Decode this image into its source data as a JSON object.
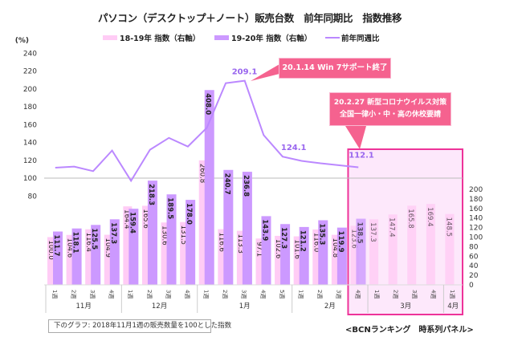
{
  "title": "パソコン（デスクトップ＋ノート）販売台数　前年同期比　指数推移",
  "legend": [
    {
      "label": "18-19年 指数（右軸）",
      "color": "#ffccf5"
    },
    {
      "label": "19-20年 指数（右軸）",
      "color": "#cc99ff"
    },
    {
      "label": "前年同週比",
      "color": "#bb88ff"
    }
  ],
  "note": "下のグラフ: 2018年11月1週の販売数量を100とした指数",
  "source": "<BCNランキング　時系列パネル>",
  "callouts": [
    {
      "text": "20.1.14  Win 7サポート終了"
    },
    {
      "line1": "20.2.27  新型コロナウイルス対策",
      "line2": "全国一律小・中・高の休校要請"
    }
  ],
  "colors": {
    "pink_bar": "#ffccf5",
    "purple_bar": "#cc99ff",
    "line": "#bb88ff",
    "highlight_border": "#ee3399",
    "highlight_fill": "#fde8fb",
    "callout": "#f5628f"
  },
  "chart_data": {
    "type": "bar+line",
    "title": "パソコン（デスクトップ＋ノート）販売台数　前年同期比　指数推移",
    "left_axis": {
      "label": "(%)",
      "range": [
        80,
        240
      ],
      "ticks": [
        80,
        100,
        120,
        140,
        160,
        180,
        200,
        220,
        240
      ]
    },
    "right_axis": {
      "range": [
        0,
        200
      ],
      "ticks": [
        0,
        20,
        40,
        60,
        80,
        100,
        120,
        140,
        160,
        180,
        200
      ]
    },
    "months": [
      {
        "label": "11月",
        "weeks": 4
      },
      {
        "label": "12月",
        "weeks": 4
      },
      {
        "label": "1月",
        "weeks": 5
      },
      {
        "label": "2月",
        "weeks": 4
      },
      {
        "label": "3月",
        "weeks": 4
      },
      {
        "label": "4月",
        "weeks": 1
      }
    ],
    "categories": [
      "1週",
      "2週",
      "3週",
      "4週",
      "1週",
      "2週",
      "3週",
      "4週",
      "1週",
      "2週",
      "3週",
      "4週",
      "5週",
      "1週",
      "2週",
      "3週",
      "4週",
      "1週",
      "2週",
      "3週",
      "4週",
      "1週"
    ],
    "series": [
      {
        "name": "18-19年 指数（右軸）",
        "type": "bar",
        "axis": "right",
        "values": [
          100.0,
          104.6,
          116.4,
          104.9,
          164.4,
          165.6,
          130.6,
          131.5,
          260.8,
          116.6,
          113.3,
          97.1,
          102.6,
          101.6,
          116.0,
          104.8,
          123.6,
          137.3,
          147.4,
          165.8,
          169.4,
          148.5
        ]
      },
      {
        "name": "19-20年 指数（右軸）",
        "type": "bar",
        "axis": "right",
        "values": [
          111.7,
          118.1,
          125.5,
          137.3,
          159.4,
          218.3,
          189.5,
          178.0,
          408.0,
          240.7,
          236.8,
          143.9,
          127.3,
          121.2,
          135.3,
          119.9,
          138.5,
          null,
          null,
          null,
          null,
          null
        ]
      },
      {
        "name": "前年同週比",
        "type": "line",
        "axis": "left",
        "values": [
          111.7,
          112.9,
          107.8,
          130.9,
          97.0,
          131.8,
          145.1,
          135.4,
          156.4,
          206.4,
          209.1,
          148.2,
          124.1,
          119.3,
          116.6,
          114.4,
          112.1,
          null,
          null,
          null,
          null,
          null
        ]
      }
    ],
    "line_labels": [
      {
        "index": 10,
        "text": "209.1"
      },
      {
        "index": 12,
        "text": "124.1"
      },
      {
        "index": 16,
        "text": "112.1"
      }
    ],
    "reference_line": 100,
    "highlight_range": {
      "from_index": 16,
      "to_index": 21
    }
  }
}
